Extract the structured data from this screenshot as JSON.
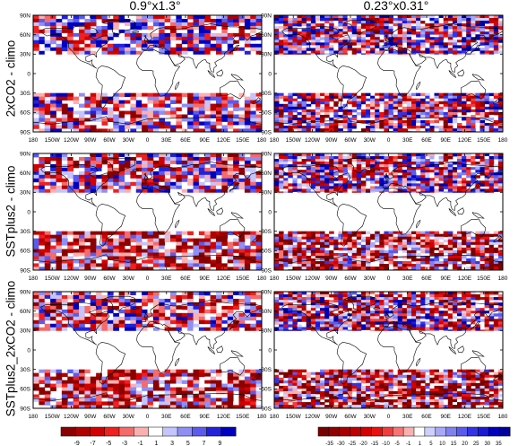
{
  "column_titles": [
    "0.9°x1.3°",
    "0.23°x0.31°"
  ],
  "row_labels": [
    "2xCO2 - climo",
    "SSTplus2 - climo",
    "SSTplus2_2xCO2 - climo"
  ],
  "colors": {
    "blue_dark": "#0000c0",
    "red_dark": "#8b0000",
    "frame": "#000000",
    "coast": "#000000"
  },
  "chart_data": [
    {
      "type": "heatmap",
      "panel": "2xCO2 - climo, 0.9°x1.3°",
      "row": 0,
      "col": 0,
      "grid": "coarse",
      "scale": 0,
      "x_ticks": [
        "180",
        "150W",
        "120W",
        "90W",
        "60W",
        "30W",
        "0",
        "30E",
        "60E",
        "90E",
        "120E",
        "150E",
        "180"
      ],
      "y_ticks": [
        "90N",
        "60N",
        "30N",
        "0",
        "30S",
        "60S",
        "90S"
      ],
      "xlim": [
        -180,
        180
      ],
      "ylim": [
        -90,
        90
      ],
      "data_lat_bands": [
        [
          30,
          90
        ],
        [
          -90,
          -30
        ]
      ]
    },
    {
      "type": "heatmap",
      "panel": "2xCO2 - climo, 0.23°x0.31°",
      "row": 0,
      "col": 1,
      "grid": "fine",
      "scale": 1,
      "x_ticks": [
        "180",
        "150W",
        "120W",
        "90W",
        "60W",
        "30W",
        "0",
        "30E",
        "60E",
        "90E",
        "120E",
        "150E",
        "180"
      ],
      "y_ticks": [
        "90N",
        "60N",
        "30N",
        "0",
        "30S",
        "60S",
        "90S"
      ],
      "xlim": [
        -180,
        180
      ],
      "ylim": [
        -90,
        90
      ],
      "data_lat_bands": [
        [
          30,
          90
        ],
        [
          -90,
          -30
        ]
      ]
    },
    {
      "type": "heatmap",
      "panel": "SSTplus2 - climo, 0.9°x1.3°",
      "row": 1,
      "col": 0,
      "grid": "coarse",
      "scale": 0,
      "x_ticks": [
        "180",
        "150W",
        "120W",
        "90W",
        "60W",
        "30W",
        "0",
        "30E",
        "60E",
        "90E",
        "120E",
        "150E",
        "180"
      ],
      "y_ticks": [
        "90N",
        "60N",
        "30N",
        "0",
        "30S",
        "60S",
        "90S"
      ],
      "xlim": [
        -180,
        180
      ],
      "ylim": [
        -90,
        90
      ],
      "data_lat_bands": [
        [
          30,
          90
        ],
        [
          -90,
          -30
        ]
      ]
    },
    {
      "type": "heatmap",
      "panel": "SSTplus2 - climo, 0.23°x0.31°",
      "row": 1,
      "col": 1,
      "grid": "fine",
      "scale": 1,
      "x_ticks": [
        "180",
        "150W",
        "120W",
        "90W",
        "60W",
        "30W",
        "0",
        "30E",
        "60E",
        "90E",
        "120E",
        "150E",
        "180"
      ],
      "y_ticks": [
        "90N",
        "60N",
        "30N",
        "0",
        "30S",
        "60S",
        "90S"
      ],
      "xlim": [
        -180,
        180
      ],
      "ylim": [
        -90,
        90
      ],
      "data_lat_bands": [
        [
          30,
          90
        ],
        [
          -90,
          -30
        ]
      ]
    },
    {
      "type": "heatmap",
      "panel": "SSTplus2_2xCO2 - climo, 0.9°x1.3°",
      "row": 2,
      "col": 0,
      "grid": "coarse",
      "scale": 0,
      "x_ticks": [
        "180",
        "150W",
        "120W",
        "90W",
        "60W",
        "30W",
        "0",
        "30E",
        "60E",
        "90E",
        "120E",
        "150E",
        "180"
      ],
      "y_ticks": [
        "90N",
        "60N",
        "30N",
        "0",
        "30S",
        "60S",
        "90S"
      ],
      "xlim": [
        -180,
        180
      ],
      "ylim": [
        -90,
        90
      ],
      "data_lat_bands": [
        [
          30,
          90
        ],
        [
          -90,
          -30
        ]
      ]
    },
    {
      "type": "heatmap",
      "panel": "SSTplus2_2xCO2 - climo, 0.23°x0.31°",
      "row": 2,
      "col": 1,
      "grid": "fine",
      "scale": 1,
      "x_ticks": [
        "180",
        "150W",
        "120W",
        "90W",
        "60W",
        "30W",
        "0",
        "30E",
        "60E",
        "90E",
        "120E",
        "150E",
        "180"
      ],
      "y_ticks": [
        "90N",
        "60N",
        "30N",
        "0",
        "30S",
        "60S",
        "90S"
      ],
      "xlim": [
        -180,
        180
      ],
      "ylim": [
        -90,
        90
      ],
      "data_lat_bands": [
        [
          30,
          90
        ],
        [
          -90,
          -30
        ]
      ]
    }
  ],
  "colorbars": [
    {
      "labels": [
        "-9",
        "-7",
        "-5",
        "-3",
        "-1",
        "1",
        "3",
        "5",
        "7",
        "9"
      ],
      "colors": [
        "#8b0000",
        "#b00000",
        "#d40000",
        "#ee2020",
        "#f56a6a",
        "#fbb0b0",
        "#ffffff",
        "#c4c4ff",
        "#8e8ef5",
        "#5a5aee",
        "#2222dd",
        "#0000c0"
      ]
    },
    {
      "labels": [
        "-35",
        "-30",
        "-25",
        "-20",
        "-15",
        "-10",
        "-5",
        "-1",
        "1",
        "5",
        "10",
        "15",
        "20",
        "25",
        "30",
        "35"
      ],
      "colors": [
        "#7a0000",
        "#8f0000",
        "#a60000",
        "#bf0000",
        "#d60000",
        "#ea1010",
        "#f23c3c",
        "#f77474",
        "#fbb0b0",
        "#ffffff",
        "#cfcfff",
        "#a8a8f8",
        "#8080f2",
        "#5a5aee",
        "#3333e6",
        "#1a1ad6",
        "#0000c0",
        "#0000a0"
      ]
    }
  ]
}
